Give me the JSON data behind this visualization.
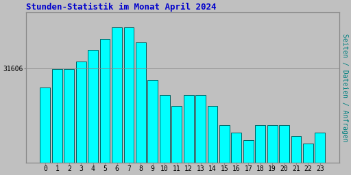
{
  "title": "Stunden-Statistik im Monat April 2024",
  "ylabel": "Seiten / Dateien / Anfragen",
  "xlabel_values": [
    0,
    1,
    2,
    3,
    4,
    5,
    6,
    7,
    8,
    9,
    10,
    11,
    12,
    13,
    14,
    15,
    16,
    17,
    18,
    19,
    20,
    21,
    22,
    23
  ],
  "values": [
    31580,
    31605,
    31605,
    31615,
    31630,
    31645,
    31660,
    31660,
    31640,
    31590,
    31570,
    31555,
    31570,
    31570,
    31555,
    31530,
    31520,
    31510,
    31530,
    31530,
    31530,
    31515,
    31505,
    31520
  ],
  "bar_fill_color": "#00FFFF",
  "bar_edge_color": "#006060",
  "background_color": "#C0C0C0",
  "plot_bg_color": "#C0C0C0",
  "title_color": "#0000CC",
  "ylabel_color": "#008080",
  "tick_label_color": "#000000",
  "ytick_label": "31606",
  "ytick_position": 31606,
  "ymin": 31480,
  "ymax": 31680,
  "title_fontsize": 9,
  "axis_fontsize": 7,
  "ylabel_fontsize": 7
}
